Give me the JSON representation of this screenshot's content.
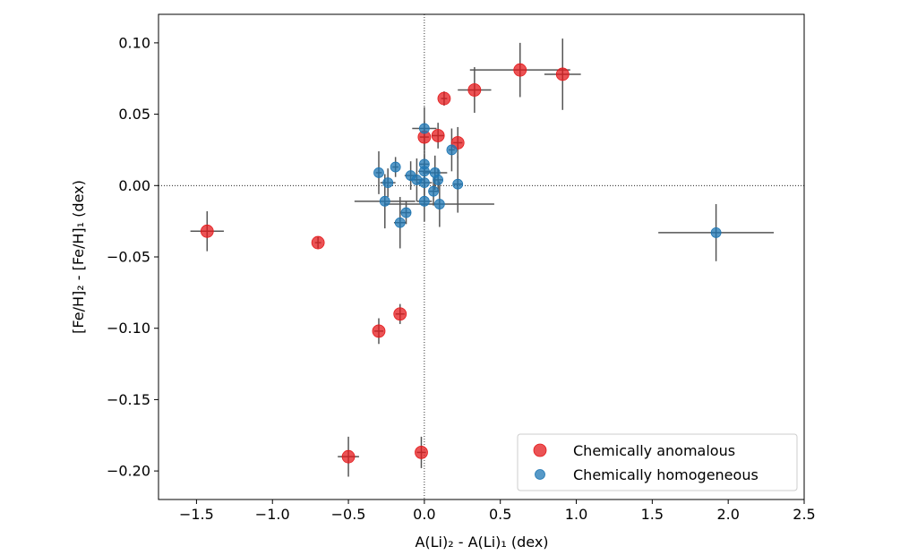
{
  "chart_data": {
    "type": "scatter",
    "xlabel": "A(Li)₂ - A(Li)₁ (dex)",
    "ylabel": "[Fe/H]₂ - [Fe/H]₁ (dex)",
    "xlim": [
      -1.75,
      2.5
    ],
    "ylim": [
      -0.22,
      0.12
    ],
    "x_ticks": [
      -1.5,
      -1.0,
      -0.5,
      0.0,
      0.5,
      1.0,
      1.5,
      2.0,
      2.5
    ],
    "x_tick_labels": [
      "−1.5",
      "−1.0",
      "−0.5",
      "0.0",
      "0.5",
      "1.0",
      "1.5",
      "2.0",
      "2.5"
    ],
    "y_ticks": [
      -0.2,
      -0.15,
      -0.1,
      -0.05,
      0.0,
      0.05,
      0.1
    ],
    "y_tick_labels": [
      "−0.20",
      "−0.15",
      "−0.10",
      "−0.05",
      "0.00",
      "0.05",
      "0.10"
    ],
    "grid": false,
    "reference_lines": {
      "x": 0,
      "y": 0,
      "style": "dotted"
    },
    "legend_position": "lower-right",
    "series": [
      {
        "name": "Chemically anomalous",
        "color": "#e41a1c",
        "marker_size": "large",
        "points": [
          {
            "x": -1.43,
            "y": -0.032,
            "xerr": 0.11,
            "yerr": 0.014
          },
          {
            "x": -0.7,
            "y": -0.04,
            "xerr": 0.02,
            "yerr": 0.004
          },
          {
            "x": -0.3,
            "y": -0.102,
            "xerr": 0.03,
            "yerr": 0.009
          },
          {
            "x": -0.16,
            "y": -0.09,
            "xerr": 0.03,
            "yerr": 0.007
          },
          {
            "x": -0.5,
            "y": -0.19,
            "xerr": 0.07,
            "yerr": 0.014
          },
          {
            "x": -0.02,
            "y": -0.187,
            "xerr": 0.03,
            "yerr": 0.011
          },
          {
            "x": 0.0,
            "y": 0.034,
            "xerr": 0.03,
            "yerr": 0.011
          },
          {
            "x": 0.09,
            "y": 0.035,
            "xerr": 0.04,
            "yerr": 0.009
          },
          {
            "x": 0.13,
            "y": 0.061,
            "xerr": 0.02,
            "yerr": 0.005
          },
          {
            "x": 0.22,
            "y": 0.03,
            "xerr": 0.03,
            "yerr": 0.011
          },
          {
            "x": 0.33,
            "y": 0.067,
            "xerr": 0.11,
            "yerr": 0.016
          },
          {
            "x": 0.63,
            "y": 0.081,
            "xerr": 0.33,
            "yerr": 0.019
          },
          {
            "x": 0.91,
            "y": 0.078,
            "xerr": 0.12,
            "yerr": 0.025
          }
        ]
      },
      {
        "name": "Chemically homogeneous",
        "color": "#1f77b4",
        "marker_size": "small",
        "points": [
          {
            "x": -0.3,
            "y": 0.009,
            "xerr": 0.02,
            "yerr": 0.015
          },
          {
            "x": -0.24,
            "y": 0.002,
            "xerr": 0.05,
            "yerr": 0.01
          },
          {
            "x": -0.19,
            "y": 0.013,
            "xerr": 0.02,
            "yerr": 0.007
          },
          {
            "x": -0.26,
            "y": -0.011,
            "xerr": 0.2,
            "yerr": 0.019
          },
          {
            "x": -0.16,
            "y": -0.026,
            "xerr": 0.04,
            "yerr": 0.018
          },
          {
            "x": -0.12,
            "y": -0.019,
            "xerr": 0.03,
            "yerr": 0.008
          },
          {
            "x": -0.09,
            "y": 0.007,
            "xerr": 0.04,
            "yerr": 0.01
          },
          {
            "x": -0.05,
            "y": 0.004,
            "xerr": 0.05,
            "yerr": 0.015
          },
          {
            "x": 0.0,
            "y": 0.04,
            "xerr": 0.08,
            "yerr": 0.015
          },
          {
            "x": 0.0,
            "y": 0.015,
            "xerr": 0.03,
            "yerr": 0.009
          },
          {
            "x": 0.0,
            "y": 0.01,
            "xerr": 0.04,
            "yerr": 0.012
          },
          {
            "x": 0.0,
            "y": 0.002,
            "xerr": 0.05,
            "yerr": 0.013
          },
          {
            "x": 0.0,
            "y": -0.011,
            "xerr": 0.05,
            "yerr": 0.014
          },
          {
            "x": 0.07,
            "y": 0.009,
            "xerr": 0.08,
            "yerr": 0.012
          },
          {
            "x": 0.06,
            "y": -0.004,
            "xerr": 0.03,
            "yerr": 0.01
          },
          {
            "x": 0.09,
            "y": 0.004,
            "xerr": 0.03,
            "yerr": 0.008
          },
          {
            "x": 0.1,
            "y": -0.013,
            "xerr": 0.36,
            "yerr": 0.016
          },
          {
            "x": 0.18,
            "y": 0.025,
            "xerr": 0.02,
            "yerr": 0.015
          },
          {
            "x": 0.22,
            "y": 0.001,
            "xerr": 0.03,
            "yerr": 0.02
          },
          {
            "x": 1.92,
            "y": -0.033,
            "xerr": 0.38,
            "yerr": 0.02
          }
        ]
      }
    ]
  }
}
